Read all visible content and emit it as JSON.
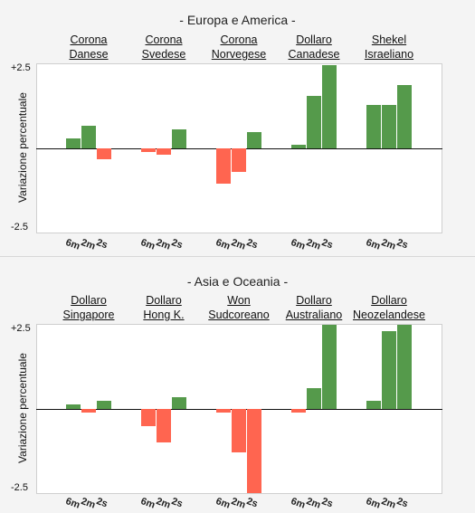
{
  "chart_data": [
    {
      "type": "bar",
      "title": "- Europa e America -",
      "ylabel": "Variazione percentuale",
      "ylim": [
        -2.5,
        2.5
      ],
      "yticks": [
        "+2.5",
        "-2.5"
      ],
      "periods": [
        "6m",
        "2m",
        "2s"
      ],
      "colors": {
        "positive": "#559a4b",
        "negative": "#ff6550"
      },
      "groups": [
        {
          "label1": "Corona",
          "label2": "Danese",
          "values": [
            0.32,
            0.72,
            -0.33
          ]
        },
        {
          "label1": "Corona",
          "label2": "Svedese",
          "values": [
            -0.1,
            -0.2,
            0.6
          ]
        },
        {
          "label1": "Corona",
          "label2": "Norvegese",
          "values": [
            -1.1,
            -0.75,
            0.5
          ]
        },
        {
          "label1": "Dollaro",
          "label2": "Canadese",
          "values": [
            0.1,
            1.65,
            2.6
          ]
        },
        {
          "label1": "Shekel",
          "label2": "Israeliano",
          "values": [
            1.35,
            1.35,
            2.0
          ]
        }
      ]
    },
    {
      "type": "bar",
      "title": "- Asia e Oceania -",
      "ylabel": "Variazione percentuale",
      "ylim": [
        -2.5,
        2.5
      ],
      "yticks": [
        "+2.5",
        "-2.5"
      ],
      "periods": [
        "6m",
        "2m",
        "2s"
      ],
      "colors": {
        "positive": "#559a4b",
        "negative": "#ff6550"
      },
      "groups": [
        {
          "label1": "Dollaro",
          "label2": "Singapore",
          "values": [
            0.15,
            -0.1,
            0.25
          ]
        },
        {
          "label1": "Dollaro",
          "label2": "Hong K.",
          "values": [
            -0.55,
            -1.05,
            0.38
          ]
        },
        {
          "label1": "Won",
          "label2": "Sudcoreano",
          "values": [
            -0.1,
            -1.35,
            -2.7
          ]
        },
        {
          "label1": "Dollaro",
          "label2": "Australiano",
          "values": [
            -0.1,
            0.65,
            2.7
          ]
        },
        {
          "label1": "Dollaro",
          "label2": "Neozelandese",
          "values": [
            0.25,
            2.45,
            2.7
          ]
        }
      ]
    }
  ]
}
